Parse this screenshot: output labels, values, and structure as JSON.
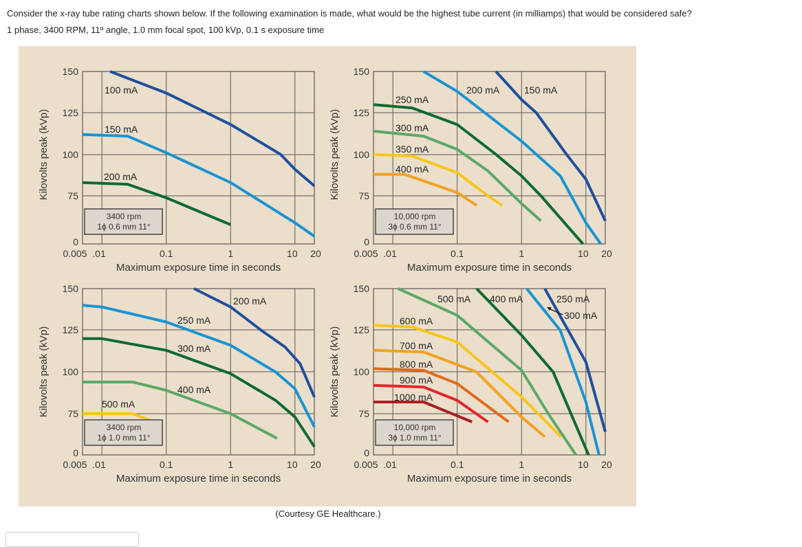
{
  "question": {
    "line1": "Consider the  x-ray tube rating charts shown below.  If the following examination is made, what would be the highest tube current (in milliamps) that would be considered safe?",
    "line2": "1 phase, 3400 RPM, 11º angle, 1.0 mm focal spot, 100 kVp, 0.1 s exposure time"
  },
  "credit": "(Courtesy GE Healthcare.)",
  "colors": {
    "panel_bg": "#ebdfcb",
    "grid": "#5a5650",
    "caption_bg": "#dcd6cc"
  },
  "chart_data": [
    {
      "type": "line",
      "xlabel": "Maximum exposure time in seconds",
      "ylabel": "Kilovolts peak (kVp)",
      "x_scale": "log",
      "xlim": [
        0.005,
        20
      ],
      "x_ticks": [
        "0.005",
        ".01",
        "0.1",
        "1",
        "10",
        "20"
      ],
      "y_ticks": [
        "150",
        "125",
        "100",
        "75",
        "0"
      ],
      "y_axis_break": "between 0 and 75",
      "grid": true,
      "caption": [
        "3400 rpm",
        "1ϕ 0.6 mm 11°"
      ],
      "series": [
        {
          "name": "100 mA",
          "color": "#1f4f9e",
          "points": [
            [
              0.0134,
              150
            ],
            [
              0.1,
              137
            ],
            [
              1,
              118
            ],
            [
              6,
              100
            ],
            [
              10,
              91
            ],
            [
              20,
              81
            ]
          ]
        },
        {
          "name": "150 mA",
          "color": "#1a93d2",
          "points": [
            [
              0.005,
              112
            ],
            [
              0.025,
              111
            ],
            [
              0.1,
              101
            ],
            [
              1,
              83
            ],
            [
              10,
              61
            ],
            [
              20,
              54
            ]
          ]
        },
        {
          "name": "200 mA",
          "color": "#0e6a2f",
          "points": [
            [
              0.005,
              83
            ],
            [
              0.025,
              82
            ],
            [
              0.1,
              74
            ],
            [
              1,
              60
            ]
          ]
        }
      ]
    },
    {
      "type": "line",
      "xlabel": "Maximum exposure time in seconds",
      "ylabel": "Kilovolts peak (kVp)",
      "x_scale": "log",
      "xlim": [
        0.005,
        20
      ],
      "x_ticks": [
        "0.005",
        ".01",
        "0.1",
        "1",
        "10",
        "20"
      ],
      "y_ticks": [
        "150",
        "125",
        "100",
        "75",
        "0"
      ],
      "y_axis_break": "between 0 and 75",
      "grid": true,
      "caption": [
        "10,000 rpm",
        "3ϕ 0.6 mm 11°"
      ],
      "series": [
        {
          "name": "200 mA",
          "color": "#1a93d2",
          "points": [
            [
              0.03,
              150
            ],
            [
              0.1,
              138
            ],
            [
              1,
              108
            ],
            [
              4,
              87
            ],
            [
              10,
              61
            ],
            [
              17,
              50
            ]
          ]
        },
        {
          "name": "150 mA",
          "color": "#1f4f9e",
          "points": [
            [
              0.4,
              150
            ],
            [
              1,
              133
            ],
            [
              1.7,
              125
            ],
            [
              5,
              100
            ],
            [
              10,
              85
            ],
            [
              20,
              62
            ]
          ]
        },
        {
          "name": "250 mA",
          "color": "#0e6a2f",
          "points": [
            [
              0.005,
              130
            ],
            [
              0.02,
              128
            ],
            [
              0.1,
              118
            ],
            [
              0.4,
              100
            ],
            [
              1,
              87
            ],
            [
              2,
              75
            ],
            [
              9,
              50
            ]
          ]
        },
        {
          "name": "300 mA",
          "color": "#5ba867",
          "points": [
            [
              0.005,
              114
            ],
            [
              0.03,
              111
            ],
            [
              0.1,
              103
            ],
            [
              0.3,
              90
            ],
            [
              1,
              71
            ],
            [
              2,
              62
            ]
          ]
        },
        {
          "name": "350 mA",
          "color": "#f8c618",
          "points": [
            [
              0.005,
              100
            ],
            [
              0.02,
              99
            ],
            [
              0.1,
              89
            ],
            [
              0.3,
              75
            ],
            [
              0.5,
              70
            ]
          ]
        },
        {
          "name": "400 mA",
          "color": "#f2a122",
          "points": [
            [
              0.005,
              88
            ],
            [
              0.015,
              88
            ],
            [
              0.1,
              77
            ],
            [
              0.2,
              70
            ]
          ]
        }
      ]
    },
    {
      "type": "line",
      "xlabel": "Maximum exposure time in seconds",
      "ylabel": "Kilovolts peak (kVp)",
      "x_scale": "log",
      "xlim": [
        0.005,
        20
      ],
      "x_ticks": [
        "0.005",
        ".01",
        "0.1",
        "1",
        "10",
        "20"
      ],
      "y_ticks": [
        "150",
        "125",
        "100",
        "75",
        "0"
      ],
      "y_axis_break": "between 0 and 75",
      "grid": true,
      "caption": [
        "3400 rpm",
        "1ϕ 1.0 mm 11°"
      ],
      "series": [
        {
          "name": "200 mA",
          "color": "#1f4f9e",
          "points": [
            [
              0.27,
              150
            ],
            [
              1,
              139
            ],
            [
              3,
              125
            ],
            [
              7,
              115
            ],
            [
              12,
              105
            ],
            [
              20,
              85
            ]
          ]
        },
        {
          "name": "250 mA",
          "color": "#1a93d2",
          "points": [
            [
              0.005,
              140
            ],
            [
              0.01,
              139
            ],
            [
              0.1,
              130
            ],
            [
              1,
              116
            ],
            [
              5,
              100
            ],
            [
              10,
              90
            ],
            [
              20,
              67
            ]
          ]
        },
        {
          "name": "300 mA",
          "color": "#0e6a2f",
          "points": [
            [
              0.005,
              120
            ],
            [
              0.01,
              120
            ],
            [
              0.1,
              113
            ],
            [
              1,
              99
            ],
            [
              5,
              83
            ],
            [
              10,
              73
            ],
            [
              20,
              55
            ]
          ]
        },
        {
          "name": "400 mA",
          "color": "#5ba867",
          "points": [
            [
              0.005,
              94
            ],
            [
              0.03,
              94
            ],
            [
              0.1,
              89
            ],
            [
              1,
              75
            ],
            [
              5.3,
              60
            ]
          ]
        },
        {
          "name": "500 mA",
          "color": "#f8c618",
          "points": [
            [
              0.005,
              75
            ],
            [
              0.03,
              75
            ],
            [
              0.065,
              70
            ]
          ]
        }
      ]
    },
    {
      "type": "line",
      "xlabel": "Maximum exposure time in seconds",
      "ylabel": "Kilovolts peak (kVp)",
      "x_scale": "log",
      "xlim": [
        0.005,
        20
      ],
      "x_ticks": [
        "0.005",
        ".01",
        "0.1",
        "1",
        "10",
        "20"
      ],
      "y_ticks": [
        "150",
        "125",
        "100",
        "75",
        "0"
      ],
      "y_axis_break": "between 0 and 75",
      "grid": true,
      "caption": [
        "10,000 rpm",
        "3ϕ 1.0 mm 11°"
      ],
      "series": [
        {
          "name": "500 mA",
          "color": "#5ba867",
          "points": [
            [
              0.012,
              150
            ],
            [
              0.1,
              134
            ],
            [
              1,
              101
            ],
            [
              2.6,
              75
            ],
            [
              7,
              50
            ]
          ]
        },
        {
          "name": "400 mA",
          "color": "#0e6a2f",
          "points": [
            [
              0.2,
              150
            ],
            [
              1,
              122
            ],
            [
              3.1,
              100
            ],
            [
              11,
              50
            ]
          ]
        },
        {
          "name": "250 mA",
          "color": "#1f4f9e",
          "points": [
            [
              2.3,
              150
            ],
            [
              10,
              106
            ],
            [
              20,
              64
            ]
          ]
        },
        {
          "name": "300 mA",
          "color": "#1a93d2",
          "points": [
            [
              1.2,
              150
            ],
            [
              4,
              125
            ],
            [
              10,
              82
            ],
            [
              16,
              50
            ]
          ]
        },
        {
          "name": "600 mA",
          "color": "#f8c618",
          "points": [
            [
              0.005,
              128
            ],
            [
              0.02,
              127
            ],
            [
              0.1,
              118
            ],
            [
              1,
              85
            ],
            [
              4.1,
              61
            ]
          ]
        },
        {
          "name": "700 mA",
          "color": "#f2a122",
          "points": [
            [
              0.005,
              113
            ],
            [
              0.03,
              112
            ],
            [
              0.2,
              100
            ],
            [
              1,
              73
            ],
            [
              2.3,
              61
            ]
          ]
        },
        {
          "name": "800 mA",
          "color": "#e06b1c",
          "points": [
            [
              0.005,
              102
            ],
            [
              0.03,
              101
            ],
            [
              0.1,
              93
            ],
            [
              0.63,
              70
            ]
          ]
        },
        {
          "name": "900 mA",
          "color": "#e2262d",
          "points": [
            [
              0.005,
              92
            ],
            [
              0.03,
              91
            ],
            [
              0.1,
              83
            ],
            [
              0.3,
              70
            ]
          ]
        },
        {
          "name": "1000 mA",
          "color": "#a91f24",
          "points": [
            [
              0.005,
              82
            ],
            [
              0.03,
              82
            ],
            [
              0.17,
              70
            ]
          ]
        }
      ]
    }
  ]
}
